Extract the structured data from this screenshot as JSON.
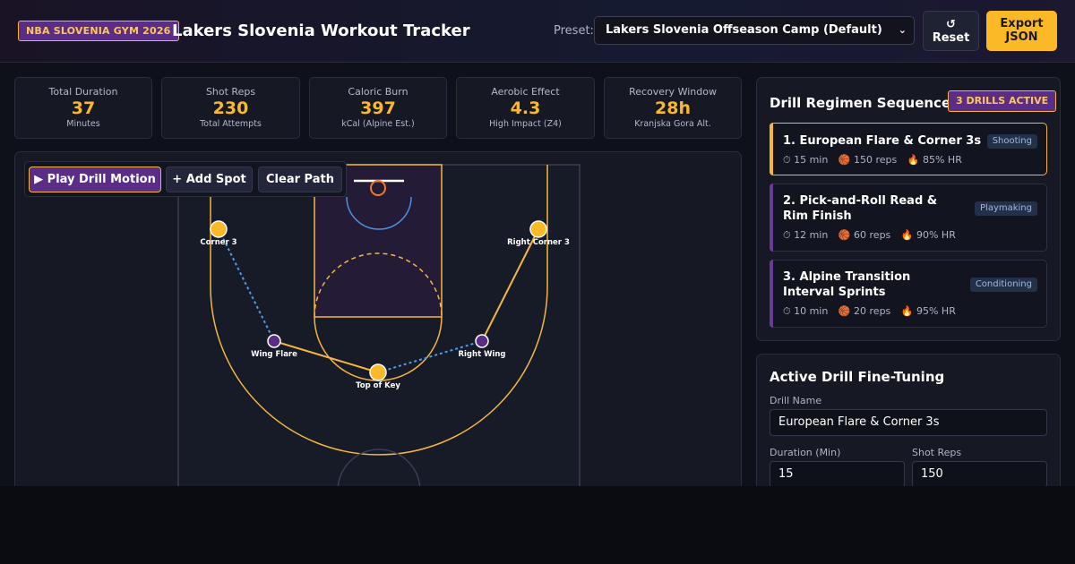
{
  "header": {
    "badge": "NBA SLOVENIA GYM 2026",
    "title": "Lakers Slovenia Workout Tracker",
    "preset_label": "Preset:",
    "preset_value": "Lakers Slovenia Offseason Camp (Default)",
    "reset_icon": "↺",
    "reset_label": "Reset",
    "export_line1": "Export",
    "export_line2": "JSON"
  },
  "stats": [
    {
      "label": "Total Duration",
      "value": "37",
      "sub": "Minutes"
    },
    {
      "label": "Shot Reps",
      "value": "230",
      "sub": "Total Attempts"
    },
    {
      "label": "Caloric Burn",
      "value": "397",
      "sub": "kCal (Alpine Est.)"
    },
    {
      "label": "Aerobic Effect",
      "value": "4.3",
      "sub": "High Impact (Z4)"
    },
    {
      "label": "Recovery Window",
      "value": "28h",
      "sub": "Kranjska Gora Alt."
    }
  ],
  "toolbar": {
    "play_label": "▶ Play Drill Motion",
    "add_label": "+ Add Spot",
    "clear_label": "Clear Path"
  },
  "court": {
    "spots": [
      {
        "label": "Corner 3",
        "role": "shooter"
      },
      {
        "label": "Right Corner 3",
        "role": "shooter"
      },
      {
        "label": "Wing Flare",
        "role": "cut"
      },
      {
        "label": "Right Wing",
        "role": "cut"
      },
      {
        "label": "Top of Key",
        "role": "shooter"
      }
    ]
  },
  "regimen": {
    "title": "Drill Regimen Sequence",
    "badge": "3 DRILLS ACTIVE",
    "drills": [
      {
        "name": "1. European Flare & Corner 3s",
        "tag": "Shooting",
        "time": "⏱ 15 min",
        "reps": "🏀 150 reps",
        "hr": "🔥 85% HR"
      },
      {
        "name": "2. Pick-and-Roll Read & Rim Finish",
        "tag": "Playmaking",
        "time": "⏱ 12 min",
        "reps": "🏀 60 reps",
        "hr": "🔥 90% HR"
      },
      {
        "name": "3. Alpine Transition Interval Sprints",
        "tag": "Conditioning",
        "time": "⏱ 10 min",
        "reps": "🏀 20 reps",
        "hr": "🔥 95% HR"
      }
    ]
  },
  "tuning": {
    "title": "Active Drill Fine-Tuning",
    "name_label": "Drill Name",
    "name_value": "European Flare & Corner 3s",
    "duration_label": "Duration (Min)",
    "duration_value": "15",
    "reps_label": "Shot Reps",
    "reps_value": "150"
  },
  "colors": {
    "accent_gold": "#fbb928",
    "accent_purple": "#5b2d84",
    "path_blue": "#4f9be8"
  }
}
